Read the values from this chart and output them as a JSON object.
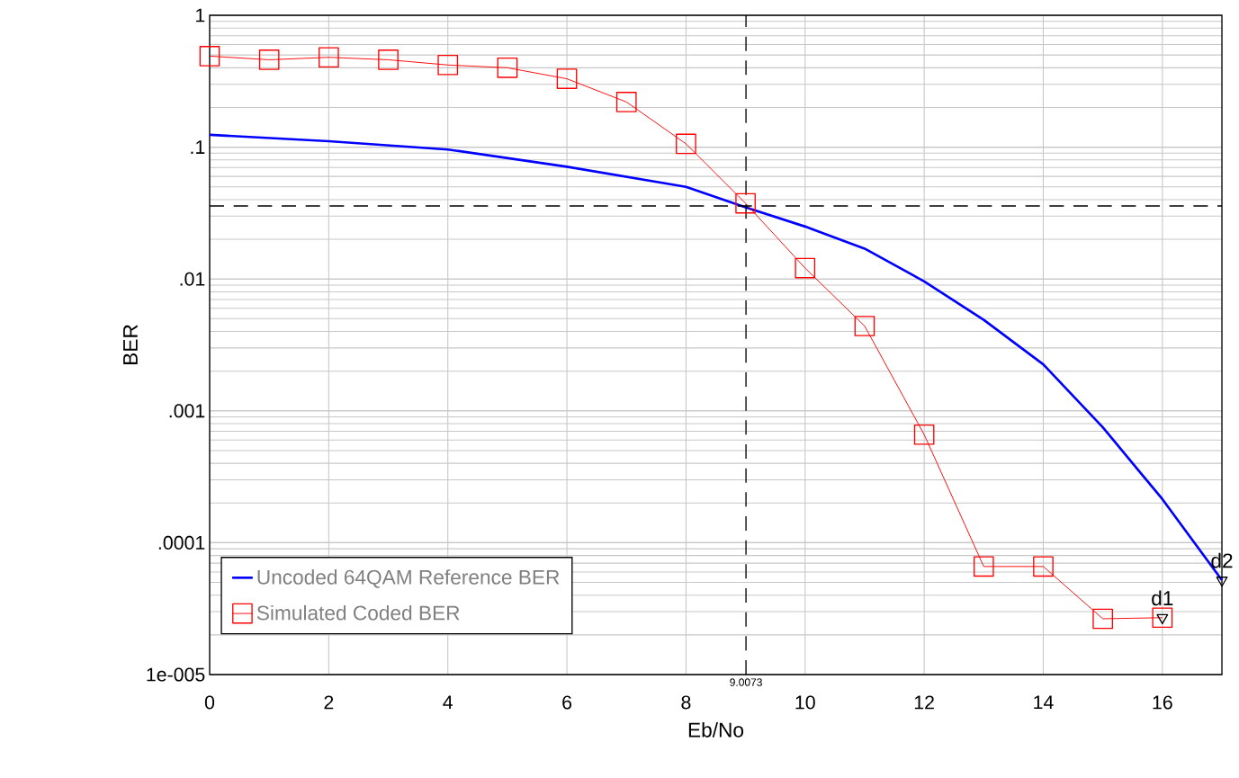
{
  "chart_data": {
    "type": "line",
    "xlabel": "Eb/No",
    "ylabel": "BER",
    "log": "y",
    "grid": true,
    "legend": "bottom left",
    "xlim": [
      0,
      17
    ],
    "xticks": [
      0,
      2,
      4,
      6,
      8,
      10,
      12,
      14,
      16
    ],
    "ylim": [
      1e-05,
      1
    ],
    "yticks": [
      {
        "value": 1e-05,
        "label": "1e-005"
      },
      {
        "value": 0.0001,
        "label": ".0001"
      },
      {
        "value": 0.001,
        "label": ".001"
      },
      {
        "value": 0.01,
        "label": ".01"
      },
      {
        "value": 0.1,
        "label": ".1"
      },
      1
    ],
    "series": [
      {
        "name": "Uncoded 64QAM Reference BER",
        "color": "#0000ff",
        "marker": "none",
        "x": [
          0,
          2,
          4,
          6,
          8,
          9,
          10,
          11,
          12,
          13,
          14,
          15,
          16,
          17
        ],
        "values": [
          0.124,
          0.111,
          0.096,
          0.071,
          0.05,
          0.035,
          0.025,
          0.017,
          0.0096,
          0.0049,
          0.00225,
          0.00075,
          0.000214,
          5.2e-05
        ]
      },
      {
        "name": "Simulated Coded BER",
        "color": "#ff0000",
        "marker": "square",
        "x": [
          0,
          1,
          2,
          3,
          4,
          5,
          6,
          7,
          8,
          9,
          10,
          11,
          12,
          13,
          14,
          15,
          16
        ],
        "values": [
          0.49,
          0.46,
          0.48,
          0.46,
          0.42,
          0.4,
          0.33,
          0.22,
          0.106,
          0.0375,
          0.0121,
          0.0044,
          0.00066,
          6.6e-05,
          6.6e-05,
          2.65e-05,
          2.7e-05
        ]
      },
      {
        "type": "scatter",
        "color": "#000000",
        "marker": "triangle",
        "x": [
          16,
          17
        ],
        "values": [
          2.7e-05,
          5.2e-05
        ]
      }
    ],
    "ref_lines": [
      {
        "axis": "x",
        "value": 9.0073,
        "label": "9.0073",
        "color": "#000000",
        "line_style": "dashed"
      },
      {
        "axis": "y",
        "value": 0.0358,
        "color": "#000000",
        "line_style": "dashed"
      }
    ],
    "annotations": [
      {
        "text": "d1",
        "x": 16,
        "y": 2.7e-05
      },
      {
        "text": "d2",
        "x": 17,
        "y": 5.2e-05
      }
    ]
  }
}
